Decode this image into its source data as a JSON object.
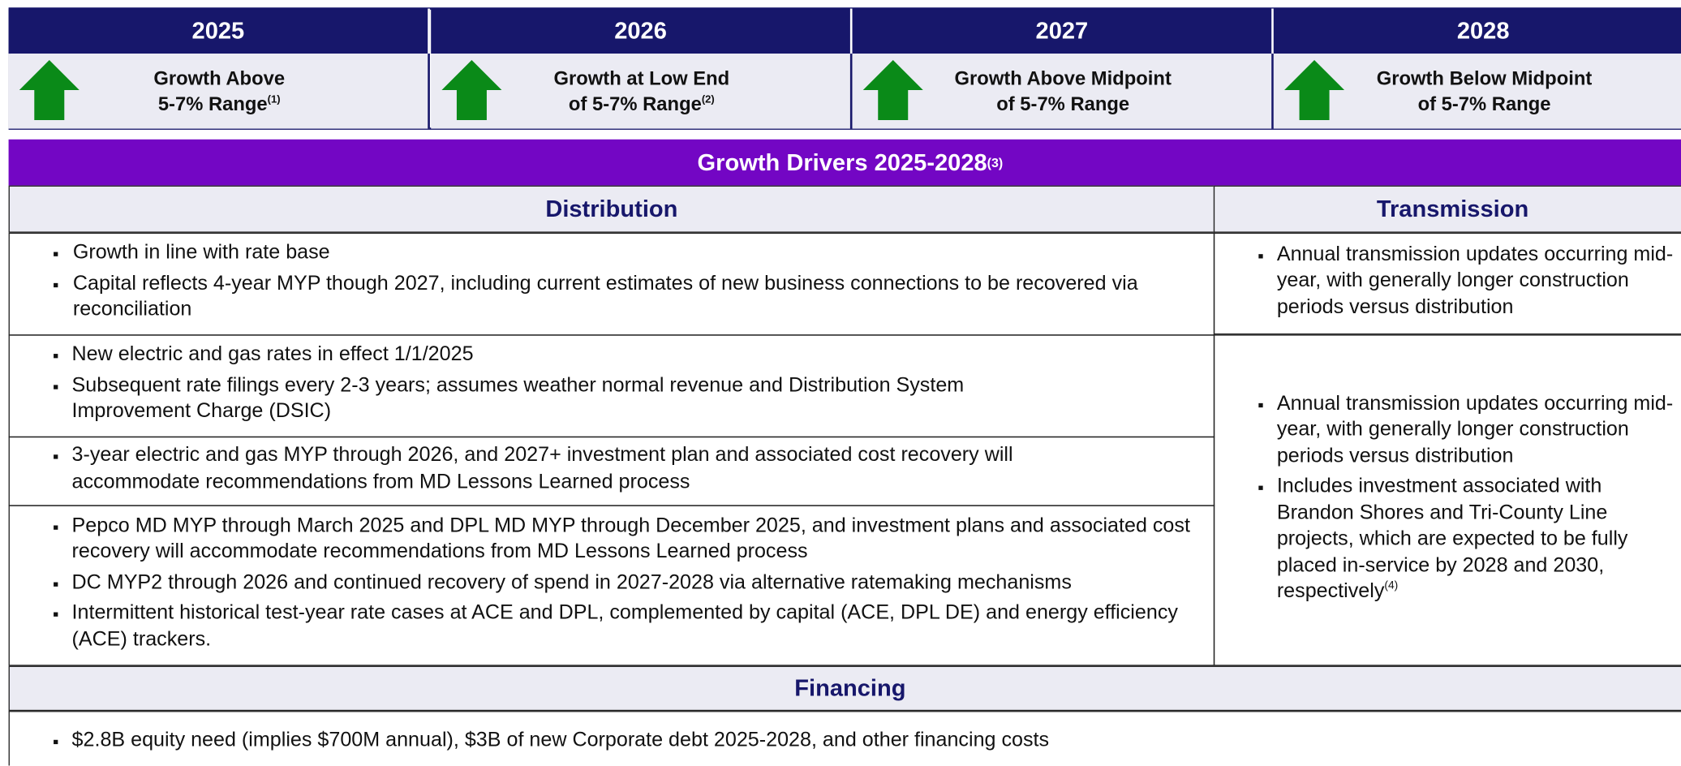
{
  "years": [
    {
      "year": "2025",
      "line1": "Growth Above",
      "line2": "5-7% Range",
      "note": "(1)"
    },
    {
      "year": "2026",
      "line1": "Growth at Low End",
      "line2": "of 5-7% Range",
      "note": "(2)"
    },
    {
      "year": "2027",
      "line1": "Growth Above Midpoint",
      "line2": "of 5-7% Range"
    },
    {
      "year": "2028",
      "line1": "Growth Below Midpoint",
      "line2": "of 5-7% Range"
    }
  ],
  "drivers": {
    "title": "Growth Drivers 2025-2028",
    "note": "(3)",
    "distribution": {
      "heading": "Distribution",
      "rows": [
        [
          "Growth in line with rate base",
          "Capital reflects 4-year MYP though 2027, including current estimates of new business connections to be recovered via reconciliation"
        ],
        [
          "New electric and gas rates in effect 1/1/2025",
          "Subsequent rate filings every 2-3 years; assumes weather normal revenue and Distribution System Improvement Charge (DSIC)"
        ],
        [
          "3-year electric and gas MYP through 2026, and 2027+ investment plan and associated cost recovery will accommodate recommendations from MD Lessons Learned process"
        ],
        [
          "Pepco MD MYP through March 2025 and DPL MD MYP through December 2025, and investment plans and associated cost recovery will accommodate recommendations from MD Lessons Learned process",
          "DC MYP2 through 2026 and continued recovery of spend in 2027-2028 via alternative ratemaking mechanisms",
          "Intermittent historical test-year rate cases at ACE and DPL, complemented by capital (ACE, DPL DE) and energy efficiency (ACE) trackers."
        ]
      ]
    },
    "transmission": {
      "heading": "Transmission",
      "cells": [
        {
          "bullets": [
            "Annual transmission updates occurring mid-year, with generally longer construction periods versus distribution"
          ]
        },
        {
          "bullets": [
            "Annual transmission updates occurring mid-year, with generally longer construction periods versus distribution",
            "Includes investment associated with Brandon Shores and Tri-County Line projects, which are expected to be fully placed in-service by 2028 and 2030, respectively"
          ],
          "note": "(4)"
        }
      ]
    }
  },
  "financing": {
    "heading": "Financing",
    "bullets": [
      "$2.8B equity need (implies $700M annual), $3B of new Corporate debt 2025-2028, and other financing costs"
    ]
  }
}
